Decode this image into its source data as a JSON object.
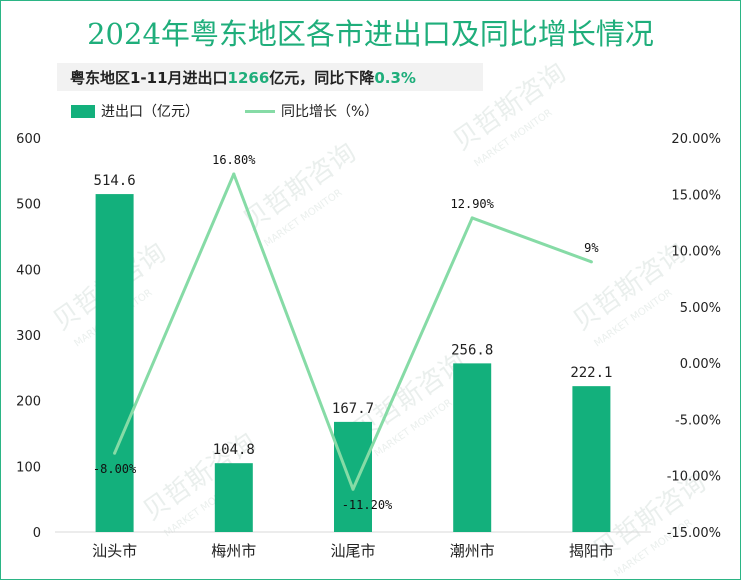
{
  "title": "2024年粤东地区各市进出口及同比增长情况",
  "subtitle": {
    "prefix": "粤东地区1-11月进出口",
    "value": "1266",
    "middle": "亿元，同比下降",
    "change": "0.3%"
  },
  "watermark": {
    "cn": "贝哲斯咨询",
    "en": "MARKET MONITOR"
  },
  "colors": {
    "bar": "#13b07c",
    "line": "#86dba6",
    "title": "#1fae7b",
    "highlight": "#1fae7b"
  },
  "chart_data": {
    "type": "bar+line",
    "categories": [
      "汕头市",
      "梅州市",
      "汕尾市",
      "潮州市",
      "揭阳市"
    ],
    "series": [
      {
        "name": "进出口（亿元）",
        "type": "bar",
        "axis": "left",
        "values": [
          514.6,
          104.8,
          167.7,
          256.8,
          222.1
        ],
        "labels": [
          "514.6",
          "104.8",
          "167.7",
          "256.8",
          "222.1"
        ]
      },
      {
        "name": "同比增长（%）",
        "type": "line",
        "axis": "right",
        "values": [
          -8.0,
          16.8,
          -11.2,
          12.9,
          9.0
        ],
        "labels": [
          "-8.00%",
          "16.80%",
          "-11.20%",
          "12.90%",
          "9%"
        ]
      }
    ],
    "y_left": {
      "ylim": [
        0,
        600
      ],
      "ticks": [
        0,
        100,
        200,
        300,
        400,
        500,
        600
      ],
      "tick_labels": [
        "0",
        "100",
        "200",
        "300",
        "400",
        "500",
        "600"
      ]
    },
    "y_right": {
      "ylim": [
        -15,
        20
      ],
      "ticks": [
        20,
        15,
        10,
        5,
        0,
        -5,
        -10,
        -15
      ],
      "tick_labels": [
        "20.00%",
        "15.00%",
        "10.00%",
        "5.00%",
        "0.00%",
        "-5.00%",
        "-10.00%",
        "-15.00%"
      ]
    },
    "grid": false,
    "legend": "top-left"
  }
}
